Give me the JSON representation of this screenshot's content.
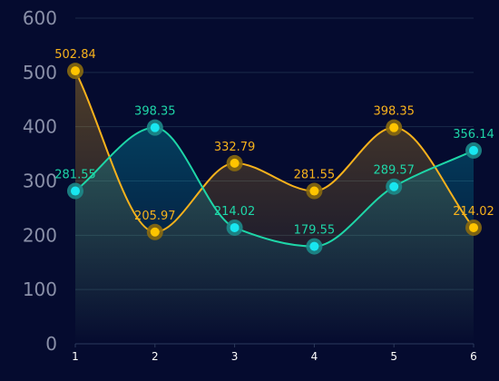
{
  "chart_data": {
    "type": "line",
    "x": [
      "1",
      "2",
      "3",
      "4",
      "5",
      "6"
    ],
    "ylim": [
      0,
      600
    ],
    "yticks": [
      0,
      100,
      200,
      300,
      400,
      500,
      600
    ],
    "grid": true,
    "series": [
      {
        "color": "#f7b21c",
        "area_color": "#f7b21c",
        "values": [
          502.84,
          205.97,
          332.79,
          281.55,
          398.35,
          214.02
        ],
        "labels": [
          "502.84",
          "205.97",
          "332.79",
          "281.55",
          "398.35",
          "214.02"
        ]
      },
      {
        "color": "#1ed6a8",
        "area_color": "#00b4c8",
        "values": [
          281.55,
          398.35,
          214.02,
          179.55,
          289.57,
          356.14
        ],
        "labels": [
          "281.55",
          "398.35",
          "214.02",
          "179.55",
          "289.57",
          "356.14"
        ]
      }
    ]
  }
}
